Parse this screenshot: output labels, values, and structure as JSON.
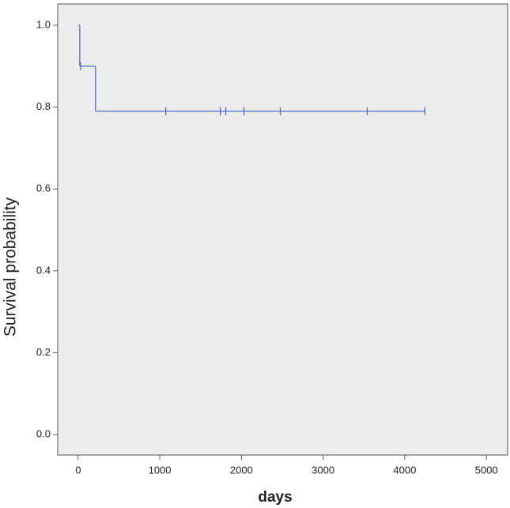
{
  "chart_data": {
    "type": "survival-step",
    "x_label": "days",
    "y_label": "Survival probability",
    "series": [
      {
        "color": "#4a6cc4",
        "x": [
          0,
          20,
          213,
          4246
        ],
        "values": [
          1.0,
          0.9,
          0.79,
          0.79
        ],
        "censor_x": [
          30,
          1073,
          1741,
          1808,
          2031,
          2476,
          3540,
          4246
        ],
        "censor_y": [
          0.9,
          0.79,
          0.79,
          0.79,
          0.79,
          0.79,
          0.79,
          0.79
        ]
      }
    ],
    "xlim": [
      -250,
      5260
    ],
    "ylim": [
      -0.05,
      1.052
    ],
    "xticks": [
      0,
      1000,
      2000,
      3000,
      4000,
      5000
    ],
    "yticks": [
      {
        "value": 0,
        "label": "0.0"
      },
      {
        "value": 0.2,
        "label": "0.2"
      },
      {
        "value": 0.4,
        "label": "0.4"
      },
      {
        "value": 0.6,
        "label": "0.6"
      },
      {
        "value": 0.8,
        "label": "0.8"
      },
      {
        "value": 1.0,
        "label": "1.0"
      }
    ],
    "background": "#ececec"
  }
}
